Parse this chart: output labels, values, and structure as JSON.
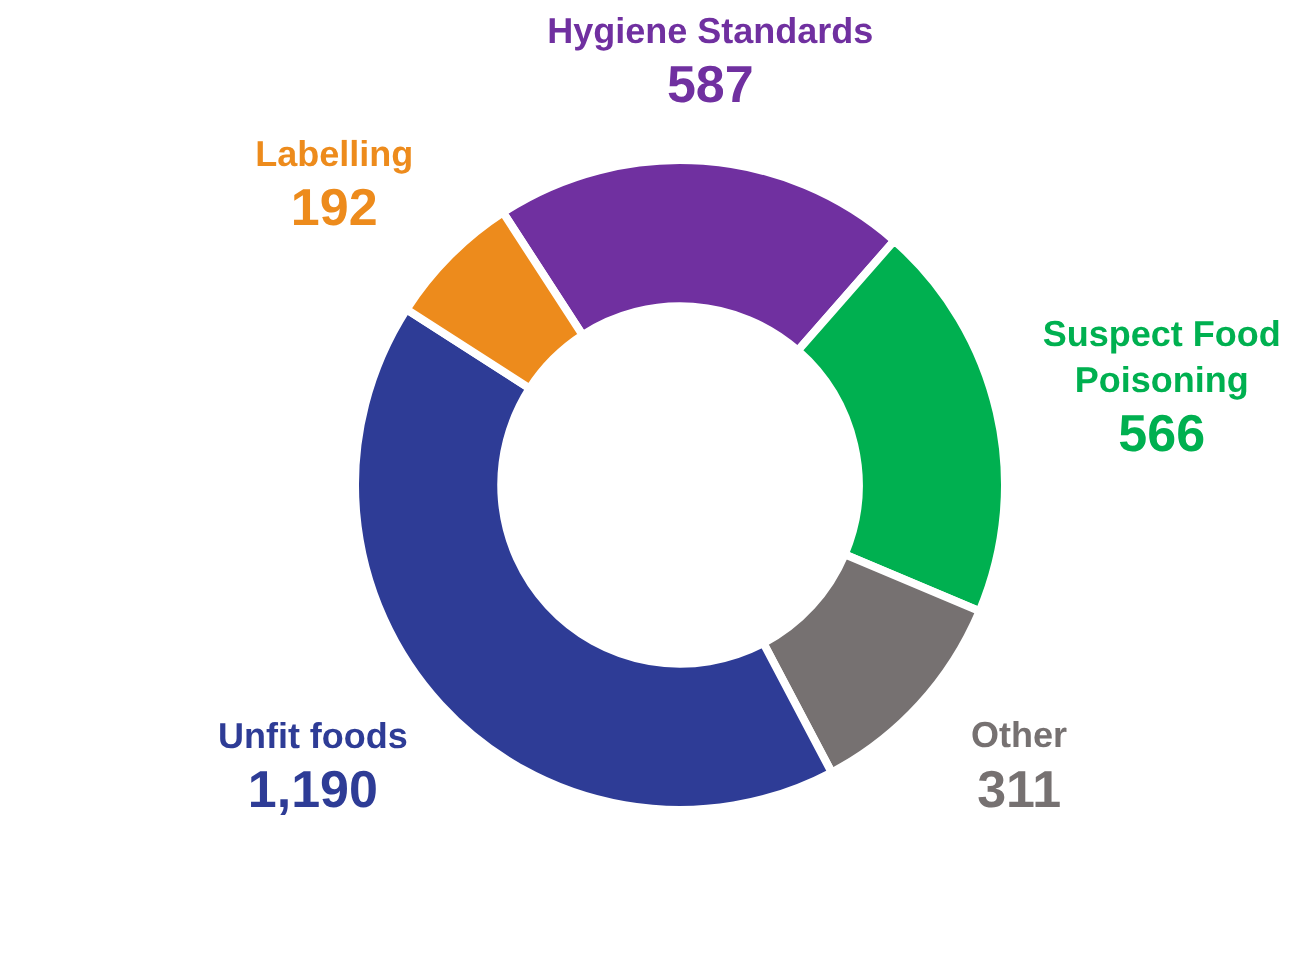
{
  "chart_data": {
    "type": "donut",
    "categories": [
      "Hygiene Standards",
      "Suspect Food Poisoning",
      "Other",
      "Unfit foods",
      "Labelling"
    ],
    "values": [
      587,
      566,
      311,
      1190,
      192
    ],
    "colors": [
      "#7030a0",
      "#00b050",
      "#767171",
      "#2e3c96",
      "#ed8b1c"
    ],
    "value_labels": [
      "587",
      "566",
      "311",
      "1,190",
      "192"
    ],
    "legend": false
  }
}
